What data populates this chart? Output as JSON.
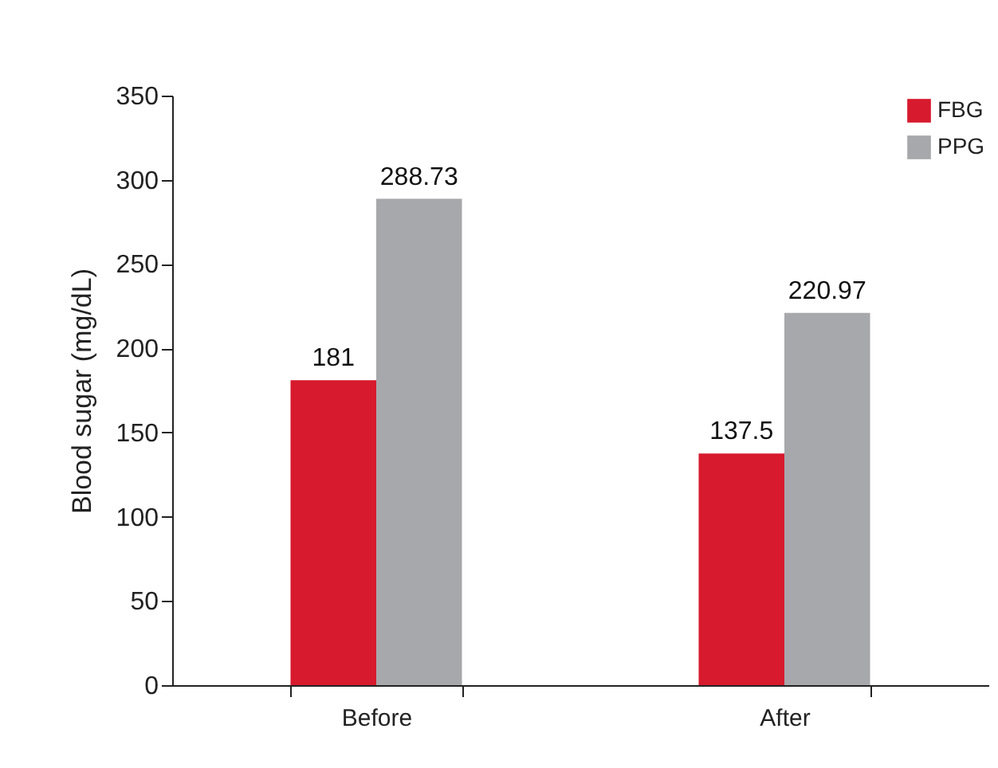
{
  "chart_data": {
    "type": "bar",
    "ylabel": "Blood sugar (mg/dL)",
    "categories": [
      "Before",
      "After"
    ],
    "series": [
      {
        "name": "FBG",
        "color": "#d71a2e",
        "values": [
          181,
          137.5
        ]
      },
      {
        "name": "PPG",
        "color": "#a7a8ab",
        "values": [
          288.73,
          220.97
        ]
      }
    ],
    "ylim": [
      0,
      350
    ],
    "yticks": [
      0,
      50,
      100,
      150,
      200,
      250,
      300,
      350
    ],
    "data_labels": true,
    "grid": false,
    "legend": "top right"
  }
}
